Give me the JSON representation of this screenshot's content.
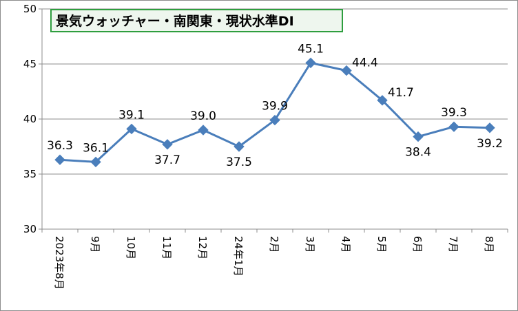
{
  "chart_data": {
    "type": "line",
    "title": "景気ウォッチャー・南関東・現状水準DI",
    "categories": [
      "2023年8月",
      "9月",
      "10月",
      "11月",
      "12月",
      "24年1月",
      "2月",
      "3月",
      "4月",
      "5月",
      "6月",
      "7月",
      "8月"
    ],
    "series": [
      {
        "values": [
          36.3,
          36.1,
          39.1,
          37.7,
          39.0,
          37.5,
          39.9,
          45.1,
          44.4,
          41.7,
          38.4,
          39.3,
          39.2
        ],
        "labels": [
          "36.3",
          "36.1",
          "39.1",
          "37.7",
          "39.0",
          "37.5",
          "39.9",
          "45.1",
          "44.4",
          "41.7",
          "38.4",
          "39.3",
          "39.2"
        ],
        "label_positions": [
          "above",
          "above",
          "above",
          "below",
          "above",
          "below",
          "above",
          "above",
          "above-right",
          "above-right",
          "below",
          "above",
          "below"
        ]
      }
    ],
    "ylim": [
      30,
      50
    ],
    "yticks": [
      30,
      35,
      40,
      45,
      50
    ],
    "grid": true,
    "line_color": "#4a7ebb",
    "marker": "diamond",
    "title_border_color": "#2e9e3e",
    "title_background": "#eef6ee"
  }
}
